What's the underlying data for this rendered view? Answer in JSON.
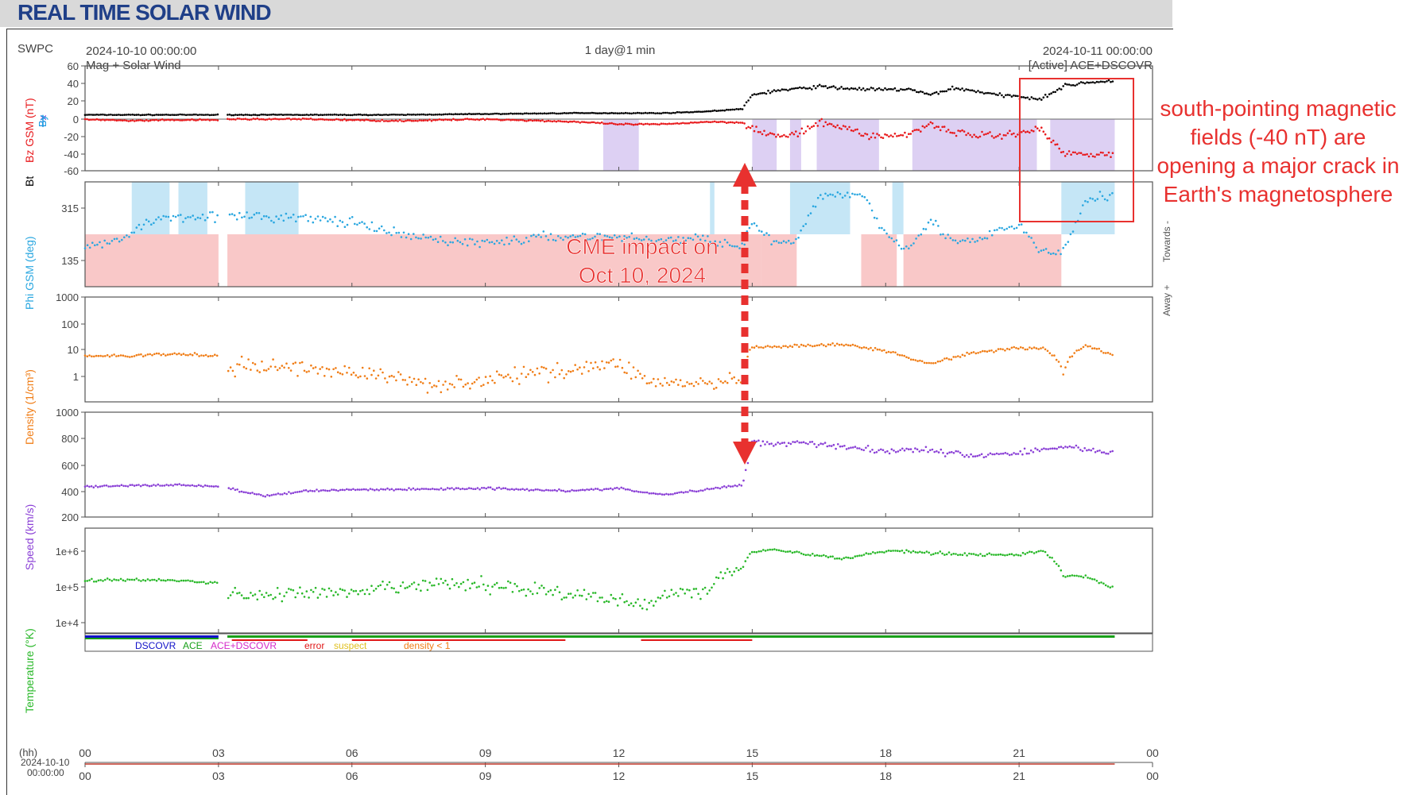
{
  "header": {
    "title": "REAL TIME SOLAR WIND"
  },
  "top": {
    "source": "SWPC",
    "start": "2024-10-10 00:00:00",
    "subtitle": "Mag + Solar Wind",
    "span": "1 day@1 min",
    "end": "2024-10-11 00:00:00",
    "active": "[Active] ACE+DSCOVR"
  },
  "colors": {
    "bt": "#000000",
    "bz": "#e8191c",
    "bx": "#7a2fd6",
    "by": "#1aa4e2",
    "phi": "#2aa7e0",
    "density": "#f07d16",
    "speed": "#8a3fd6",
    "temp": "#28b828",
    "annot": "#e8312f",
    "bandPink": "#f9c8c8",
    "bandBlue": "#c5e6f6",
    "bandPurple": "#ddd0f3"
  },
  "chart_data": [
    {
      "type": "scatter",
      "panel": "mag",
      "ylabel_parts": [
        "Bt",
        "Bz GSM (nT)",
        "Bx",
        "By"
      ],
      "yticks": [
        "60",
        "40",
        "20",
        "0",
        "-20",
        "-40",
        "-60"
      ],
      "ylim": [
        -60,
        60
      ],
      "series": [
        {
          "name": "Bt",
          "x": [
            0,
            1,
            2,
            3,
            3.2,
            5,
            7,
            9,
            11,
            12,
            13,
            14,
            14.8,
            15,
            15.5,
            16,
            16.5,
            17,
            17.5,
            18,
            18.5,
            19,
            19.5,
            20,
            20.5,
            21,
            21.5,
            22,
            22.5,
            23
          ],
          "values": [
            5,
            5,
            5,
            5,
            5,
            5,
            5,
            6,
            7,
            7,
            7,
            9,
            12,
            28,
            33,
            35,
            38,
            36,
            35,
            34,
            35,
            28,
            36,
            33,
            28,
            26,
            24,
            38,
            43,
            43
          ]
        },
        {
          "name": "Bz",
          "x": [
            0,
            1,
            2,
            3,
            3.2,
            5,
            7,
            9,
            11,
            12,
            13,
            14,
            14.8,
            15,
            15.5,
            16,
            16.5,
            17,
            17.5,
            18,
            18.5,
            19,
            19.5,
            20,
            20.5,
            21,
            21.5,
            22,
            22.5,
            23
          ],
          "values": [
            0,
            -2,
            -1,
            -1,
            0,
            0,
            -2,
            0,
            -3,
            -6,
            -6,
            -3,
            -4,
            -10,
            -20,
            -18,
            -5,
            -8,
            -18,
            -20,
            -18,
            -5,
            -15,
            -18,
            -20,
            -15,
            -12,
            -40,
            -40,
            -40
          ]
        }
      ]
    },
    {
      "type": "scatter",
      "panel": "phi",
      "ylabel": "Phi GSM (deg)",
      "yticks": [
        "315",
        "135"
      ],
      "right_labels": [
        "Towards -",
        "Away +"
      ],
      "x": [
        0,
        0.5,
        1,
        1.5,
        2,
        2.5,
        3,
        3.2,
        4,
        5,
        6,
        7,
        8,
        9,
        10,
        11,
        12,
        13,
        14,
        14.8,
        15,
        15.5,
        16,
        16.5,
        17,
        17.5,
        18,
        18.5,
        19,
        19.5,
        20,
        20.5,
        21,
        21.5,
        22,
        22.5,
        23
      ],
      "values": [
        130,
        150,
        180,
        230,
        240,
        245,
        240,
        240,
        240,
        235,
        220,
        180,
        160,
        150,
        165,
        175,
        170,
        160,
        165,
        140,
        220,
        150,
        150,
        310,
        320,
        315,
        180,
        135,
        225,
        160,
        150,
        190,
        210,
        120,
        115,
        300,
        310
      ]
    },
    {
      "type": "scatter",
      "panel": "density",
      "ylabel": "Density (1/cm³)",
      "yticks": [
        "1000",
        "100",
        "10",
        "1"
      ],
      "ylim_log": [
        0.3,
        1000
      ],
      "x": [
        0,
        1,
        2,
        3,
        3.2,
        4,
        5,
        6,
        7,
        8,
        9,
        10,
        11,
        12,
        12.5,
        13,
        14,
        14.8,
        15,
        15.5,
        16,
        17,
        18,
        18.5,
        19,
        19.5,
        20,
        21,
        21.5,
        22,
        22.5,
        23
      ],
      "values": [
        6,
        6,
        7,
        6,
        2,
        2.5,
        2,
        1.5,
        0.8,
        0.5,
        0.7,
        1.2,
        2,
        3,
        0.8,
        0.6,
        0.5,
        0.7,
        12,
        13,
        14,
        16,
        9,
        5,
        3,
        5,
        8,
        12,
        12,
        1,
        15,
        7
      ]
    },
    {
      "type": "scatter",
      "panel": "speed",
      "ylabel": "Speed (km/s)",
      "yticks": [
        "1000",
        "800",
        "600",
        "400",
        "200"
      ],
      "ylim": [
        200,
        1000
      ],
      "x": [
        0,
        1,
        2,
        3,
        3.2,
        4,
        5,
        6,
        7,
        8,
        9,
        10,
        11,
        12,
        12.5,
        13,
        14,
        14.8,
        15,
        15.5,
        16,
        16.5,
        17,
        18,
        18.5,
        19,
        19.5,
        20,
        20.5,
        21,
        21.5,
        22,
        22.5,
        23
      ],
      "values": [
        430,
        440,
        445,
        435,
        420,
        360,
        400,
        410,
        410,
        415,
        420,
        410,
        400,
        420,
        390,
        370,
        410,
        450,
        780,
        760,
        770,
        760,
        740,
        700,
        720,
        710,
        680,
        670,
        680,
        690,
        710,
        740,
        720,
        690
      ]
    },
    {
      "type": "scatter",
      "panel": "temperature",
      "ylabel": "Temperature (°K)",
      "yticks": [
        "1e+6",
        "1e+5",
        "1e+4"
      ],
      "ylim_log": [
        5000,
        3000000
      ],
      "x": [
        0,
        1,
        2,
        3,
        3.2,
        4,
        5,
        6,
        7,
        8,
        9,
        10,
        11,
        12,
        12.5,
        13,
        14,
        14.8,
        15,
        15.5,
        16,
        17,
        18,
        18.5,
        19,
        20,
        21,
        21.5,
        22,
        22.5,
        23
      ],
      "values": [
        150000,
        160000,
        150000,
        130000,
        60000,
        60000,
        70000,
        60000,
        100000,
        120000,
        110000,
        90000,
        60000,
        40000,
        30000,
        60000,
        80000,
        400000,
        1000000,
        1100000,
        900000,
        600000,
        1000000,
        1000000,
        900000,
        800000,
        800000,
        1000000,
        200000,
        200000,
        100000
      ]
    }
  ],
  "status": {
    "legend": [
      {
        "label": "DSCOVR",
        "color": "#1010c8"
      },
      {
        "label": "ACE",
        "color": "#18a018"
      },
      {
        "label": "ACE+DSCOVR",
        "color": "#d428c8"
      },
      {
        "label": "error",
        "color": "#e01818"
      },
      {
        "label": "suspect",
        "color": "#e0c020"
      },
      {
        "label": "density < 1",
        "color": "#f07d16"
      }
    ]
  },
  "xaxis": {
    "hh": "(hh)",
    "ticks": [
      "00",
      "03",
      "06",
      "09",
      "12",
      "15",
      "18",
      "21",
      "00"
    ],
    "date_line1": "2024-10-10",
    "date_line2": "00:00:00"
  },
  "annotations": {
    "cme_line1": "CME impact on",
    "cme_line2": "Oct 10, 2024",
    "south_line1": "south-pointing magnetic",
    "south_line2": "fields (-40 nT) are",
    "south_line3": "opening a major crack in",
    "south_line4": "Earth's magnetosphere"
  }
}
